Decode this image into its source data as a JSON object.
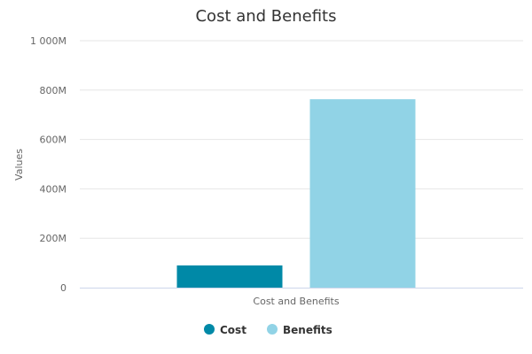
{
  "chart_data": {
    "type": "bar",
    "title": "Cost and Benefits",
    "xlabel": "",
    "ylabel": "Values",
    "categories": [
      "Cost and Benefits"
    ],
    "series": [
      {
        "name": "Cost",
        "values": [
          90000000
        ],
        "color": "#0089a7"
      },
      {
        "name": "Benefits",
        "values": [
          763000000
        ],
        "color": "#91d3e6"
      }
    ],
    "ylim": [
      0,
      1000000000
    ],
    "yticks": [
      0,
      200000000,
      400000000,
      600000000,
      800000000,
      1000000000
    ],
    "ytick_labels": [
      "0",
      "200M",
      "400M",
      "600M",
      "800M",
      "1 000M"
    ],
    "grid": true,
    "legend": "bottom-center"
  }
}
